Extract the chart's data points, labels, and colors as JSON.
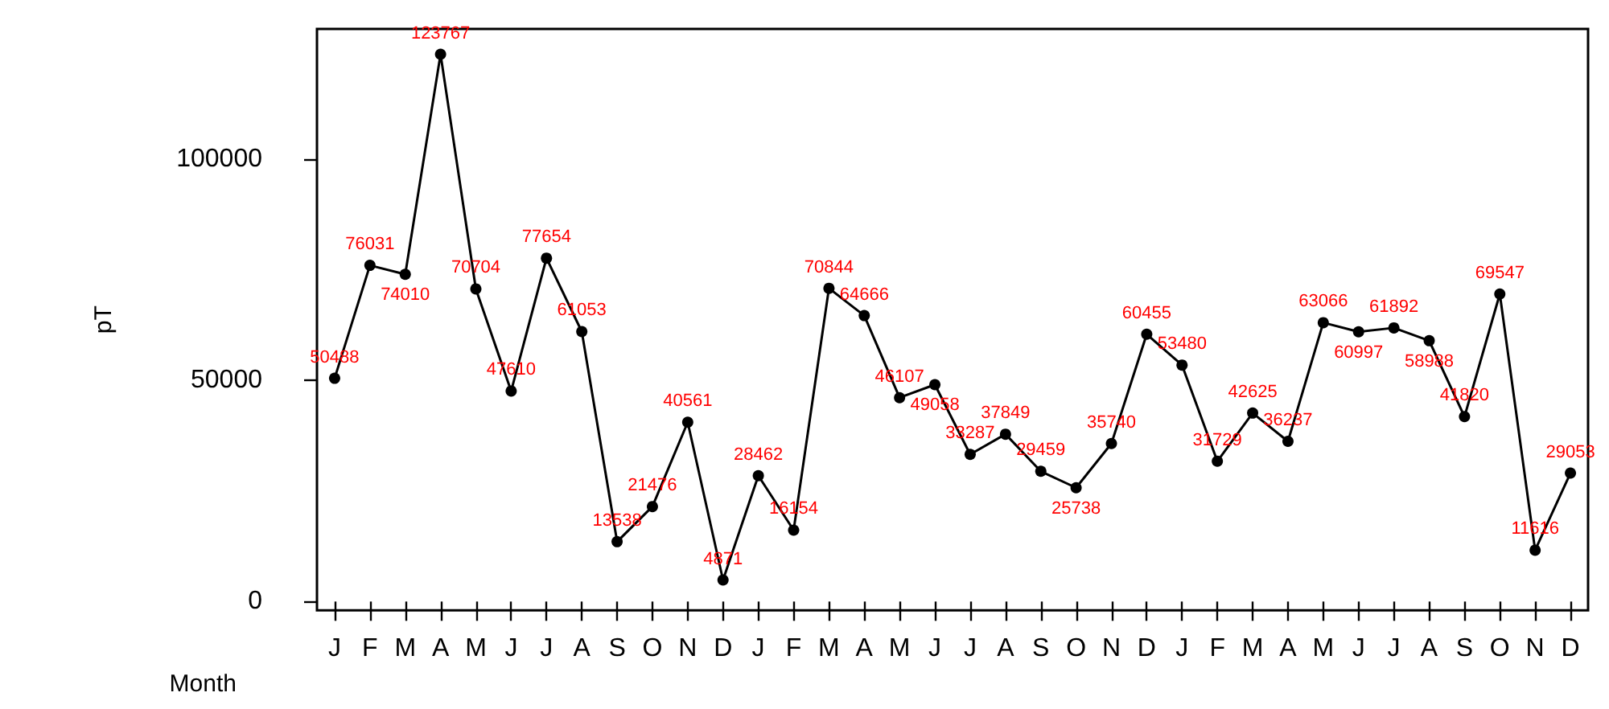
{
  "chart_data": {
    "type": "line",
    "xlabel": "Month",
    "ylabel": "pT",
    "categories": [
      "J",
      "F",
      "M",
      "A",
      "M",
      "J",
      "J",
      "A",
      "S",
      "O",
      "N",
      "D",
      "J",
      "F",
      "M",
      "A",
      "M",
      "J",
      "J",
      "A",
      "S",
      "O",
      "N",
      "D",
      "J",
      "F",
      "M",
      "A",
      "M",
      "J",
      "J",
      "A",
      "S",
      "O",
      "N",
      "D"
    ],
    "values": [
      50488,
      76031,
      74010,
      123767,
      70704,
      47610,
      77654,
      61053,
      13538,
      21476,
      40561,
      4871,
      28462,
      16154,
      70844,
      64666,
      46107,
      49058,
      33287,
      37849,
      29459,
      25738,
      35740,
      60455,
      53480,
      31729,
      42625,
      36237,
      63066,
      60997,
      61892,
      58988,
      41820,
      69547,
      11616,
      29053
    ],
    "color": "#000000",
    "ylim": [
      -2000,
      129500
    ],
    "yticks": [
      0,
      50000,
      100000
    ],
    "data_labels": true,
    "marker": "circle",
    "line_style": "solid",
    "grid": false
  }
}
